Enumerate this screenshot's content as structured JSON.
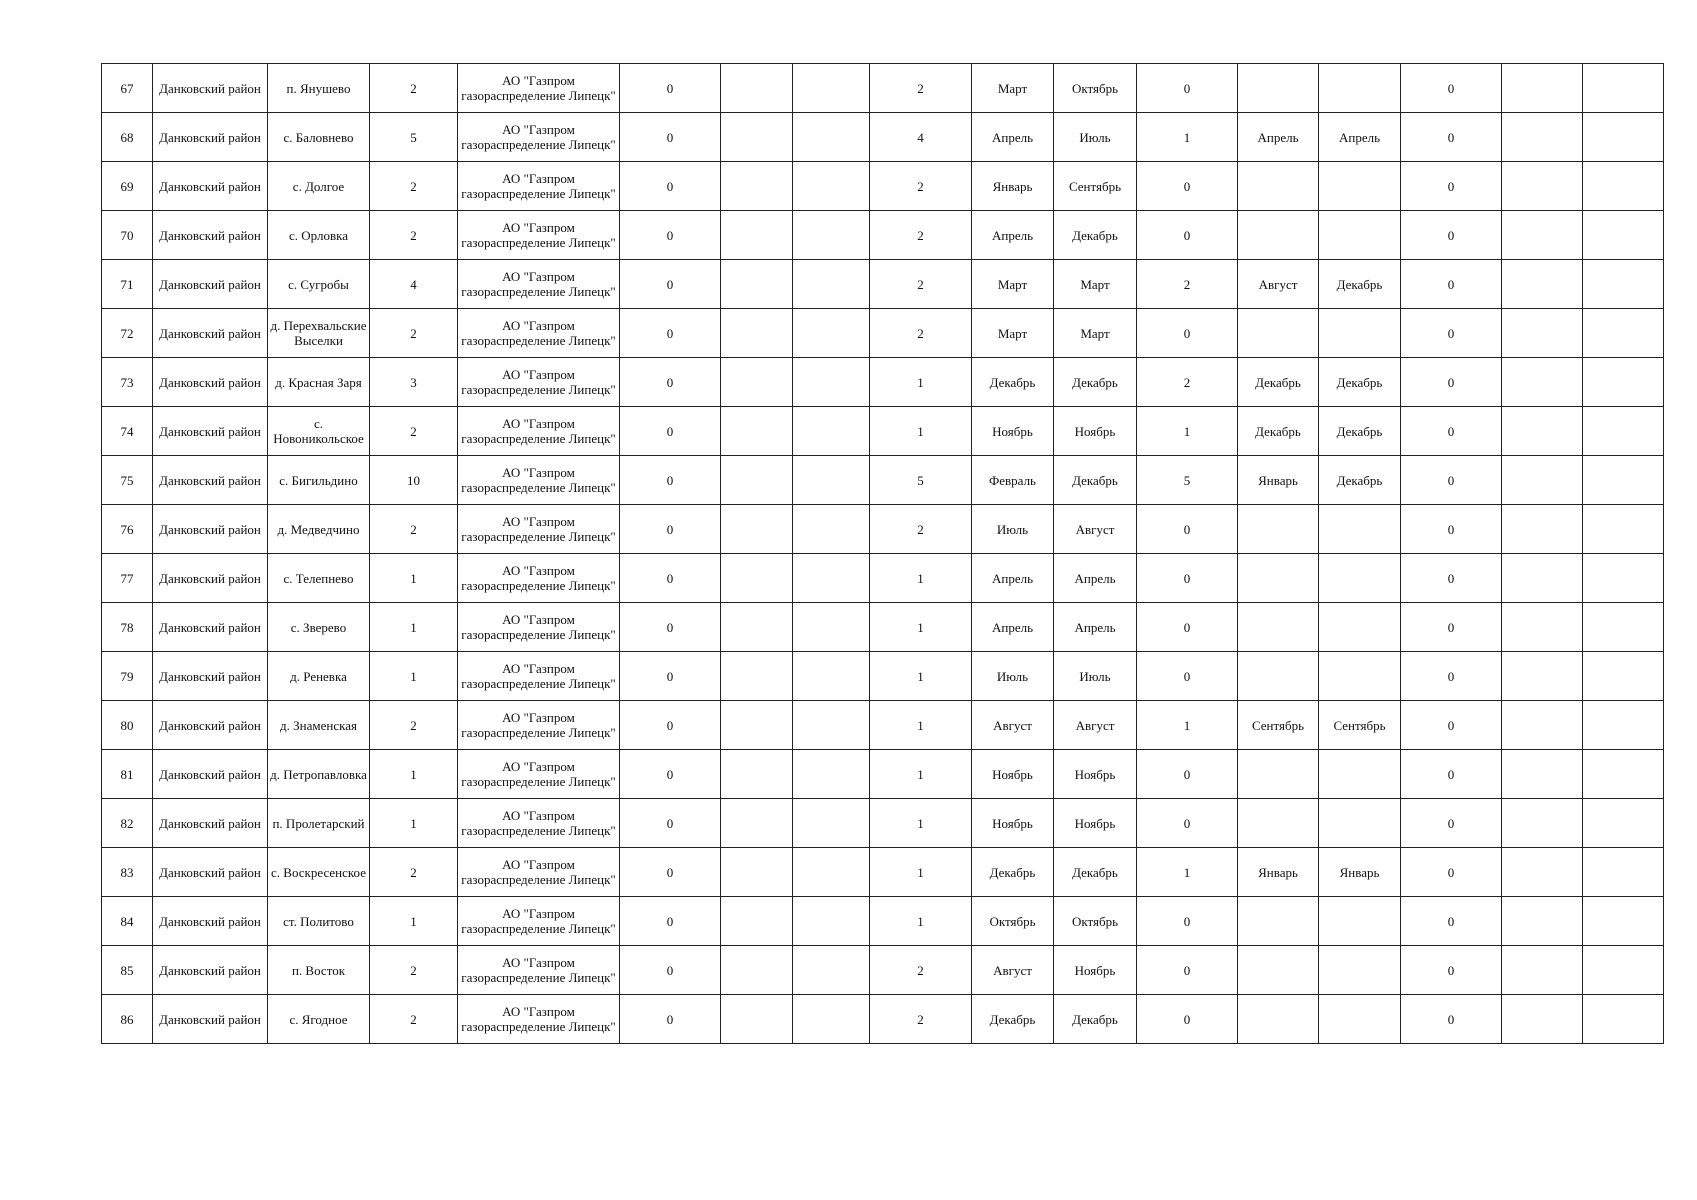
{
  "table": {
    "rows": [
      [
        "67",
        "Данковский район",
        "п. Янушево",
        "2",
        "АО \"Газпром газораспределение Липецк\"",
        "0",
        "",
        "",
        "2",
        "Март",
        "Октябрь",
        "0",
        "",
        "",
        "0",
        "",
        ""
      ],
      [
        "68",
        "Данковский район",
        "с. Баловнево",
        "5",
        "АО \"Газпром газораспределение Липецк\"",
        "0",
        "",
        "",
        "4",
        "Апрель",
        "Июль",
        "1",
        "Апрель",
        "Апрель",
        "0",
        "",
        ""
      ],
      [
        "69",
        "Данковский район",
        "с. Долгое",
        "2",
        "АО \"Газпром газораспределение Липецк\"",
        "0",
        "",
        "",
        "2",
        "Январь",
        "Сентябрь",
        "0",
        "",
        "",
        "0",
        "",
        ""
      ],
      [
        "70",
        "Данковский район",
        "с. Орловка",
        "2",
        "АО \"Газпром газораспределение Липецк\"",
        "0",
        "",
        "",
        "2",
        "Апрель",
        "Декабрь",
        "0",
        "",
        "",
        "0",
        "",
        ""
      ],
      [
        "71",
        "Данковский район",
        "с. Сугробы",
        "4",
        "АО \"Газпром газораспределение Липецк\"",
        "0",
        "",
        "",
        "2",
        "Март",
        "Март",
        "2",
        "Август",
        "Декабрь",
        "0",
        "",
        ""
      ],
      [
        "72",
        "Данковский район",
        "д. Перехвальские Выселки",
        "2",
        "АО \"Газпром газораспределение Липецк\"",
        "0",
        "",
        "",
        "2",
        "Март",
        "Март",
        "0",
        "",
        "",
        "0",
        "",
        ""
      ],
      [
        "73",
        "Данковский район",
        "д. Красная Заря",
        "3",
        "АО \"Газпром газораспределение Липецк\"",
        "0",
        "",
        "",
        "1",
        "Декабрь",
        "Декабрь",
        "2",
        "Декабрь",
        "Декабрь",
        "0",
        "",
        ""
      ],
      [
        "74",
        "Данковский район",
        "с. Новоникольское",
        "2",
        "АО \"Газпром газораспределение Липецк\"",
        "0",
        "",
        "",
        "1",
        "Ноябрь",
        "Ноябрь",
        "1",
        "Декабрь",
        "Декабрь",
        "0",
        "",
        ""
      ],
      [
        "75",
        "Данковский район",
        "с. Бигильдино",
        "10",
        "АО \"Газпром газораспределение Липецк\"",
        "0",
        "",
        "",
        "5",
        "Февраль",
        "Декабрь",
        "5",
        "Январь",
        "Декабрь",
        "0",
        "",
        ""
      ],
      [
        "76",
        "Данковский район",
        "д. Медведчино",
        "2",
        "АО \"Газпром газораспределение Липецк\"",
        "0",
        "",
        "",
        "2",
        "Июль",
        "Август",
        "0",
        "",
        "",
        "0",
        "",
        ""
      ],
      [
        "77",
        "Данковский район",
        "с. Телепнево",
        "1",
        "АО \"Газпром газораспределение Липецк\"",
        "0",
        "",
        "",
        "1",
        "Апрель",
        "Апрель",
        "0",
        "",
        "",
        "0",
        "",
        ""
      ],
      [
        "78",
        "Данковский район",
        "с. Зверево",
        "1",
        "АО \"Газпром газораспределение Липецк\"",
        "0",
        "",
        "",
        "1",
        "Апрель",
        "Апрель",
        "0",
        "",
        "",
        "0",
        "",
        ""
      ],
      [
        "79",
        "Данковский район",
        "д. Реневка",
        "1",
        "АО \"Газпром газораспределение Липецк\"",
        "0",
        "",
        "",
        "1",
        "Июль",
        "Июль",
        "0",
        "",
        "",
        "0",
        "",
        ""
      ],
      [
        "80",
        "Данковский район",
        "д. Знаменская",
        "2",
        "АО \"Газпром газораспределение Липецк\"",
        "0",
        "",
        "",
        "1",
        "Август",
        "Август",
        "1",
        "Сентябрь",
        "Сентябрь",
        "0",
        "",
        ""
      ],
      [
        "81",
        "Данковский район",
        "д. Петропавловка",
        "1",
        "АО \"Газпром газораспределение Липецк\"",
        "0",
        "",
        "",
        "1",
        "Ноябрь",
        "Ноябрь",
        "0",
        "",
        "",
        "0",
        "",
        ""
      ],
      [
        "82",
        "Данковский район",
        "п. Пролетарский",
        "1",
        "АО \"Газпром газораспределение Липецк\"",
        "0",
        "",
        "",
        "1",
        "Ноябрь",
        "Ноябрь",
        "0",
        "",
        "",
        "0",
        "",
        ""
      ],
      [
        "83",
        "Данковский район",
        "с. Воскресенское",
        "2",
        "АО \"Газпром газораспределение Липецк\"",
        "0",
        "",
        "",
        "1",
        "Декабрь",
        "Декабрь",
        "1",
        "Январь",
        "Январь",
        "0",
        "",
        ""
      ],
      [
        "84",
        "Данковский район",
        "ст. Политово",
        "1",
        "АО \"Газпром газораспределение Липецк\"",
        "0",
        "",
        "",
        "1",
        "Октябрь",
        "Октябрь",
        "0",
        "",
        "",
        "0",
        "",
        ""
      ],
      [
        "85",
        "Данковский район",
        "п. Восток",
        "2",
        "АО \"Газпром газораспределение Липецк\"",
        "0",
        "",
        "",
        "2",
        "Август",
        "Ноябрь",
        "0",
        "",
        "",
        "0",
        "",
        ""
      ],
      [
        "86",
        "Данковский район",
        "с. Ягодное",
        "2",
        "АО \"Газпром газораспределение Липецк\"",
        "0",
        "",
        "",
        "2",
        "Декабрь",
        "Декабрь",
        "0",
        "",
        "",
        "0",
        "",
        ""
      ]
    ]
  }
}
